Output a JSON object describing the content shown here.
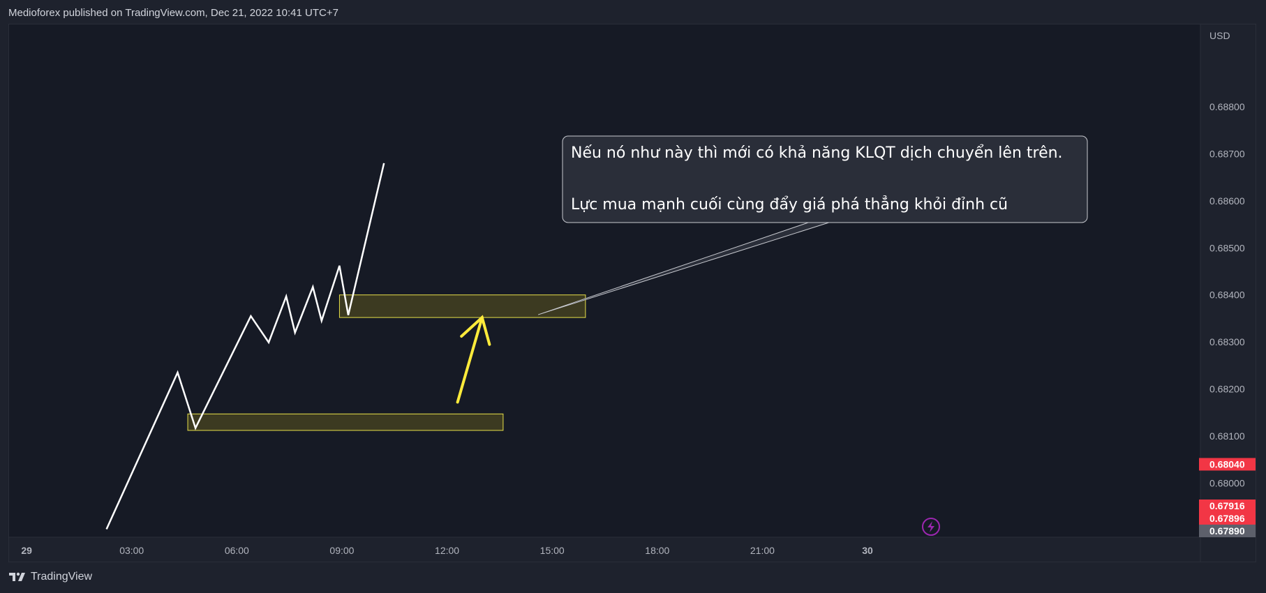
{
  "header": {
    "published_text": "Medioforex published on TradingView.com, Dec 21, 2022 10:41 UTC+7"
  },
  "footer": {
    "brand": "TradingView"
  },
  "colors": {
    "background": "#1e222d",
    "plot_background": "#161a25",
    "line": "#ffffff",
    "zone_fill": "#4a4520",
    "zone_stroke": "#e8e04a",
    "arrow": "#ffeb3b",
    "callout_bg": "#2a2e39",
    "price_red": "#f23645",
    "price_gray": "#5d606b",
    "axis_text": "#b2b5be",
    "alert_icon": "#9c27b0"
  },
  "chart_data": {
    "type": "line",
    "currency_label": "USD",
    "ylim": [
      0.67885,
      0.68975
    ],
    "xlim": [
      -0.5,
      33.5
    ],
    "x_ticks": [
      {
        "x": 0,
        "label": "29"
      },
      {
        "x": 3,
        "label": "03:00"
      },
      {
        "x": 6,
        "label": "06:00"
      },
      {
        "x": 9,
        "label": "09:00"
      },
      {
        "x": 12,
        "label": "12:00"
      },
      {
        "x": 15,
        "label": "15:00"
      },
      {
        "x": 18,
        "label": "18:00"
      },
      {
        "x": 21,
        "label": "21:00"
      },
      {
        "x": 24,
        "label": "30"
      }
    ],
    "y_ticks": [
      {
        "v": 0.688,
        "label": "0.68800"
      },
      {
        "v": 0.687,
        "label": "0.68700"
      },
      {
        "v": 0.686,
        "label": "0.68600"
      },
      {
        "v": 0.685,
        "label": "0.68500"
      },
      {
        "v": 0.684,
        "label": "0.68400"
      },
      {
        "v": 0.683,
        "label": "0.68300"
      },
      {
        "v": 0.682,
        "label": "0.68200"
      },
      {
        "v": 0.681,
        "label": "0.68100"
      },
      {
        "v": 0.68,
        "label": "0.68000"
      }
    ],
    "series": [
      {
        "points": [
          [
            2.28,
            0.67902
          ],
          [
            4.31,
            0.68235
          ],
          [
            4.82,
            0.68117
          ],
          [
            6.4,
            0.68355
          ],
          [
            6.91,
            0.68299
          ],
          [
            7.41,
            0.68397
          ],
          [
            7.66,
            0.6832
          ],
          [
            8.17,
            0.68417
          ],
          [
            8.42,
            0.68345
          ],
          [
            8.93,
            0.68462
          ],
          [
            9.18,
            0.68357
          ],
          [
            10.2,
            0.6868
          ]
        ]
      }
    ],
    "zones": [
      {
        "x0": 4.6,
        "x1": 13.6,
        "y0": 0.68112,
        "y1": 0.68147
      },
      {
        "x0": 8.93,
        "x1": 15.95,
        "y0": 0.68352,
        "y1": 0.684
      }
    ],
    "arrow": {
      "from": [
        12.3,
        0.68172
      ],
      "to": [
        13.0,
        0.68352
      ]
    },
    "callout": {
      "lines": [
        "Nếu nó như này thì mới có khả năng KLQT dịch chuyển lên trên.",
        "",
        "Lực mua mạnh cuối cùng đẩy giá phá thẳng khỏi đỉnh cũ"
      ],
      "anchor": [
        14.6,
        0.68358
      ]
    },
    "price_labels": [
      {
        "v": 0.6804,
        "label": "0.68040",
        "color": "#f23645"
      },
      {
        "v": 0.67916,
        "label": "0.67916",
        "color": "#f23645"
      },
      {
        "v": 0.67896,
        "label": "0.67896",
        "color": "#f23645"
      },
      {
        "v": 0.6789,
        "label": "0.67890",
        "color": "#5d606b"
      }
    ]
  }
}
